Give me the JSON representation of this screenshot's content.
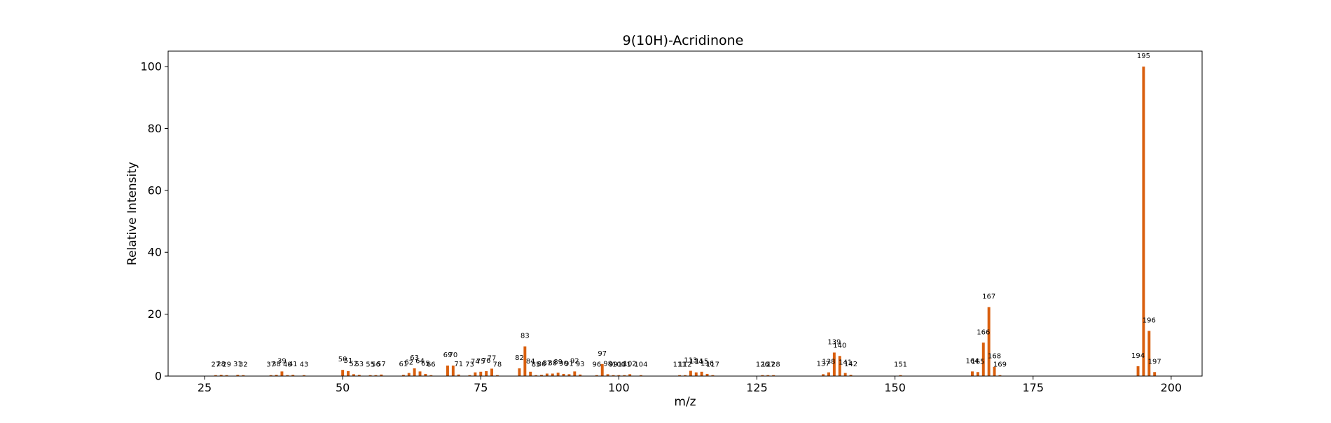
{
  "chart_data": {
    "type": "bar",
    "title": "9(10H)-Acridinone",
    "xlabel": "m/z",
    "ylabel": "Relative Intensity",
    "xlim": [
      18.4,
      205.6
    ],
    "ylim": [
      0,
      105
    ],
    "x_ticks": [
      25,
      50,
      75,
      100,
      125,
      150,
      175,
      200
    ],
    "y_ticks": [
      0,
      20,
      40,
      60,
      80,
      100
    ],
    "grid": false,
    "bar_color": "#d95f0e",
    "points": [
      {
        "mz": 27,
        "intensity": 0.3
      },
      {
        "mz": 28,
        "intensity": 0.4
      },
      {
        "mz": 29,
        "intensity": 0.3
      },
      {
        "mz": 31,
        "intensity": 0.4
      },
      {
        "mz": 32,
        "intensity": 0.3
      },
      {
        "mz": 37,
        "intensity": 0.3
      },
      {
        "mz": 38,
        "intensity": 0.4
      },
      {
        "mz": 39,
        "intensity": 1.5
      },
      {
        "mz": 40,
        "intensity": 0.3
      },
      {
        "mz": 41,
        "intensity": 0.4
      },
      {
        "mz": 43,
        "intensity": 0.3
      },
      {
        "mz": 50,
        "intensity": 2.0
      },
      {
        "mz": 51,
        "intensity": 1.6
      },
      {
        "mz": 52,
        "intensity": 0.6
      },
      {
        "mz": 53,
        "intensity": 0.4
      },
      {
        "mz": 55,
        "intensity": 0.3
      },
      {
        "mz": 56,
        "intensity": 0.3
      },
      {
        "mz": 57,
        "intensity": 0.5
      },
      {
        "mz": 61,
        "intensity": 0.4
      },
      {
        "mz": 62,
        "intensity": 1.0
      },
      {
        "mz": 63,
        "intensity": 2.5
      },
      {
        "mz": 64,
        "intensity": 1.5
      },
      {
        "mz": 65,
        "intensity": 0.7
      },
      {
        "mz": 66,
        "intensity": 0.3
      },
      {
        "mz": 69,
        "intensity": 3.4
      },
      {
        "mz": 70,
        "intensity": 3.4
      },
      {
        "mz": 71,
        "intensity": 0.5
      },
      {
        "mz": 73,
        "intensity": 0.3
      },
      {
        "mz": 74,
        "intensity": 1.2
      },
      {
        "mz": 75,
        "intensity": 1.4
      },
      {
        "mz": 76,
        "intensity": 1.6
      },
      {
        "mz": 77,
        "intensity": 2.4
      },
      {
        "mz": 78,
        "intensity": 0.3
      },
      {
        "mz": 82,
        "intensity": 2.5
      },
      {
        "mz": 83,
        "intensity": 9.6
      },
      {
        "mz": 84,
        "intensity": 1.4
      },
      {
        "mz": 85,
        "intensity": 0.3
      },
      {
        "mz": 86,
        "intensity": 0.4
      },
      {
        "mz": 87,
        "intensity": 0.8
      },
      {
        "mz": 88,
        "intensity": 0.8
      },
      {
        "mz": 89,
        "intensity": 1.1
      },
      {
        "mz": 90,
        "intensity": 0.7
      },
      {
        "mz": 91,
        "intensity": 0.6
      },
      {
        "mz": 92,
        "intensity": 1.5
      },
      {
        "mz": 93,
        "intensity": 0.5
      },
      {
        "mz": 96,
        "intensity": 0.3
      },
      {
        "mz": 97,
        "intensity": 3.9
      },
      {
        "mz": 98,
        "intensity": 0.6
      },
      {
        "mz": 99,
        "intensity": 0.3
      },
      {
        "mz": 100,
        "intensity": 0.3
      },
      {
        "mz": 101,
        "intensity": 0.3
      },
      {
        "mz": 102,
        "intensity": 0.6
      },
      {
        "mz": 104,
        "intensity": 0.3
      },
      {
        "mz": 111,
        "intensity": 0.3
      },
      {
        "mz": 112,
        "intensity": 0.3
      },
      {
        "mz": 113,
        "intensity": 1.7
      },
      {
        "mz": 114,
        "intensity": 1.2
      },
      {
        "mz": 115,
        "intensity": 1.4
      },
      {
        "mz": 116,
        "intensity": 0.7
      },
      {
        "mz": 117,
        "intensity": 0.3
      },
      {
        "mz": 126,
        "intensity": 0.3
      },
      {
        "mz": 127,
        "intensity": 0.3
      },
      {
        "mz": 128,
        "intensity": 0.3
      },
      {
        "mz": 137,
        "intensity": 0.6
      },
      {
        "mz": 138,
        "intensity": 1.2
      },
      {
        "mz": 139,
        "intensity": 7.6
      },
      {
        "mz": 140,
        "intensity": 6.5
      },
      {
        "mz": 141,
        "intensity": 1.0
      },
      {
        "mz": 142,
        "intensity": 0.4
      },
      {
        "mz": 151,
        "intensity": 0.3
      },
      {
        "mz": 164,
        "intensity": 1.5
      },
      {
        "mz": 165,
        "intensity": 1.3
      },
      {
        "mz": 166,
        "intensity": 10.8
      },
      {
        "mz": 167,
        "intensity": 22.3
      },
      {
        "mz": 168,
        "intensity": 3.0
      },
      {
        "mz": 169,
        "intensity": 0.3
      },
      {
        "mz": 194,
        "intensity": 3.2
      },
      {
        "mz": 195,
        "intensity": 100.0
      },
      {
        "mz": 196,
        "intensity": 14.6
      },
      {
        "mz": 197,
        "intensity": 1.3
      }
    ]
  }
}
